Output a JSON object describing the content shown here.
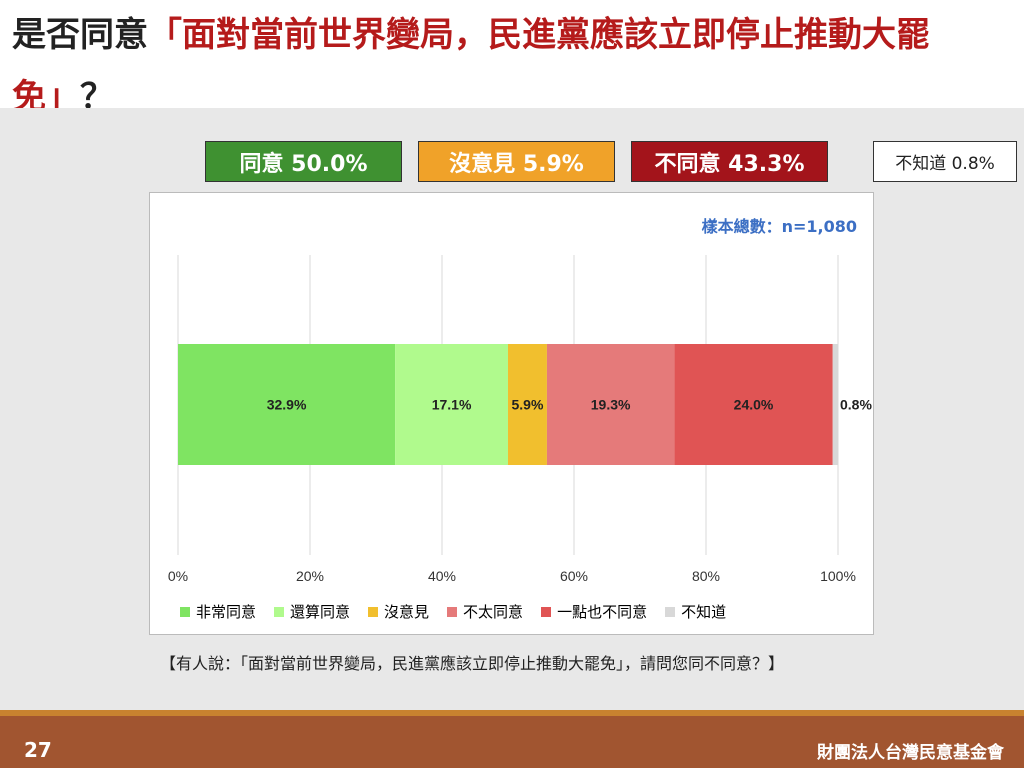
{
  "title": {
    "prefix": "是否同意",
    "highlight": "「面對當前世界變局，民進黨應該立即停止推動大罷免」",
    "suffix": "？"
  },
  "summary": [
    {
      "label": "同意 50.0%",
      "bg": "#3f9131",
      "fg": "#ffffff"
    },
    {
      "label": "沒意見 5.9%",
      "bg": "#f0a229",
      "fg": "#ffffff"
    },
    {
      "label": "不同意 43.3%",
      "bg": "#a3141b",
      "fg": "#ffffff"
    },
    {
      "label": "不知道 0.8%",
      "bg": "#ffffff",
      "fg": "#222222"
    }
  ],
  "sample_text": "樣本總數：n=1,080",
  "chart_data": {
    "type": "bar",
    "orientation": "horizontal",
    "stacked": true,
    "xlim": [
      0,
      100
    ],
    "xticks": [
      "0%",
      "20%",
      "40%",
      "60%",
      "80%",
      "100%"
    ],
    "grid": true,
    "legend_position": "bottom",
    "series": [
      {
        "name": "非常同意",
        "value": 32.9,
        "label": "32.9%",
        "color": "#7fe462"
      },
      {
        "name": "還算同意",
        "value": 17.1,
        "label": "17.1%",
        "color": "#b0fa8d"
      },
      {
        "name": "沒意見",
        "value": 5.9,
        "label": "5.9%",
        "color": "#f1bf2e"
      },
      {
        "name": "不太同意",
        "value": 19.3,
        "label": "19.3%",
        "color": "#e57a7a"
      },
      {
        "name": "一點也不同意",
        "value": 24.0,
        "label": "24.0%",
        "color": "#e05454"
      },
      {
        "name": "不知道",
        "value": 0.8,
        "label": "0.8%",
        "color": "#d8d8d8"
      }
    ]
  },
  "question": "【有人說：「面對當前世界變局，民進黨應該立即停止推動大罷免」，請問您同不同意？】",
  "footer": {
    "page": "27",
    "org": "財團法人台灣民意基金會"
  }
}
